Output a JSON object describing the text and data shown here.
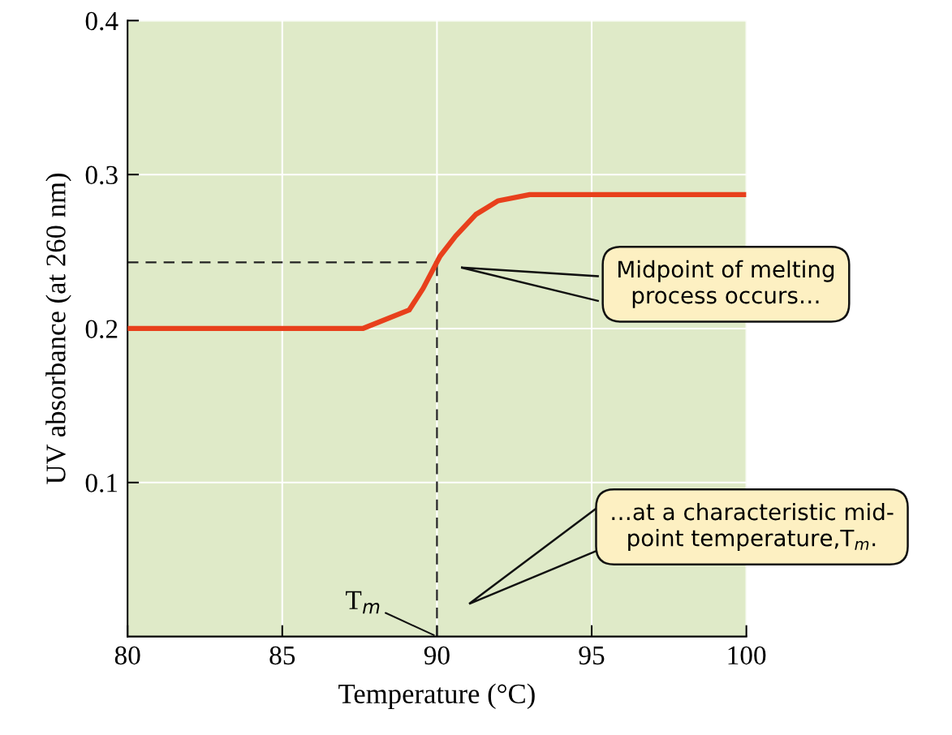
{
  "chart_data": {
    "type": "line",
    "xlabel": "Temperature (°C)",
    "ylabel": "UV absorbance (at 260 nm)",
    "x": [
      80,
      87.6,
      89.1,
      89.55,
      90.1,
      90.6,
      91.25,
      91.98,
      93.0,
      100
    ],
    "series": [
      {
        "color": "#e8401c",
        "values": [
          0.2,
          0.2,
          0.212,
          0.226,
          0.247,
          0.26,
          0.274,
          0.283,
          0.287,
          0.287
        ]
      }
    ],
    "xlim": [
      80,
      100
    ],
    "xticks": [
      80,
      85,
      90,
      95,
      100
    ],
    "ylim": [
      0,
      0.4
    ],
    "yticks": [
      0.1,
      0.2,
      0.3,
      0.4
    ],
    "grid": true,
    "marker": "none",
    "line_style": "solid",
    "ref_lines": [
      {
        "axis": "x",
        "value": 90,
        "color": "#222222",
        "line_style": "dashed"
      },
      {
        "axis": "y",
        "value": 0.243,
        "color": "#222222",
        "line_style": "dashed"
      }
    ],
    "annotations": [
      "Midpoint of melting\nprocess occurs…",
      "…at a characteristic mid-\npoint temperature,T$_{m}$.",
      {
        "text": "T$_{m}$",
        "x": 90,
        "y": 0
      }
    ]
  }
}
